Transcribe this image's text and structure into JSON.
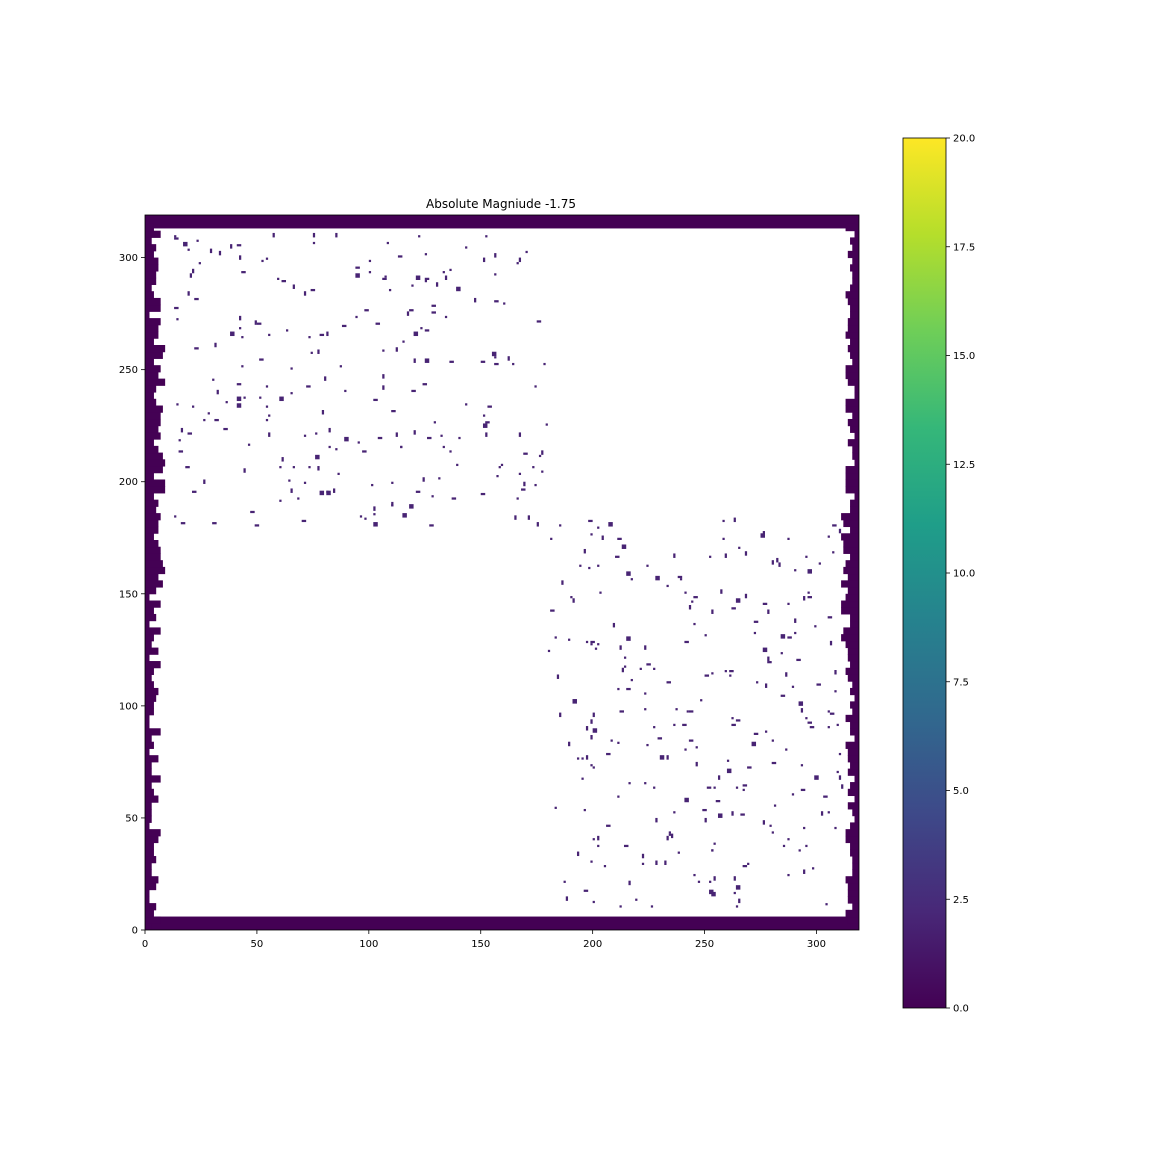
{
  "chart_data": [
    {
      "type": "heatmap",
      "title": "Absolute Magniude -1.75",
      "xlabel": "",
      "ylabel": "",
      "xlim": [
        0,
        319
      ],
      "ylim": [
        0,
        319
      ],
      "x_ticks": [
        0,
        50,
        100,
        150,
        200,
        250,
        300
      ],
      "y_ticks": [
        0,
        50,
        100,
        150,
        200,
        250,
        300
      ],
      "origin": "lower",
      "grid": false,
      "background": "masked (white)",
      "border_value": 0,
      "scattered_value": 2,
      "border": {
        "left_right_irregular": true,
        "top_rows": [
          313,
          319
        ],
        "bottom_rows": [
          0,
          6
        ]
      },
      "clusters": [
        {
          "region": "upper-left",
          "x_range": [
            12,
            180
          ],
          "y_range": [
            180,
            310
          ],
          "count": 230,
          "value": 2,
          "seed": 7
        },
        {
          "region": "lower-right",
          "x_range": [
            180,
            312
          ],
          "y_range": [
            10,
            185
          ],
          "count": 260,
          "value": 2,
          "seed": 19
        }
      ],
      "colorscale": {
        "name": "viridis",
        "min": 0,
        "max": 20,
        "stops": [
          "#440154",
          "#482878",
          "#3e4989",
          "#31688e",
          "#26828e",
          "#1f9e89",
          "#35b779",
          "#6ece58",
          "#b5de2b",
          "#fde725"
        ]
      }
    },
    {
      "type": "colorbar",
      "ticks": [
        "0.0",
        "2.5",
        "5.0",
        "7.5",
        "10.0",
        "12.5",
        "15.0",
        "17.5",
        "20.0"
      ],
      "min": 0,
      "max": 20
    }
  ]
}
